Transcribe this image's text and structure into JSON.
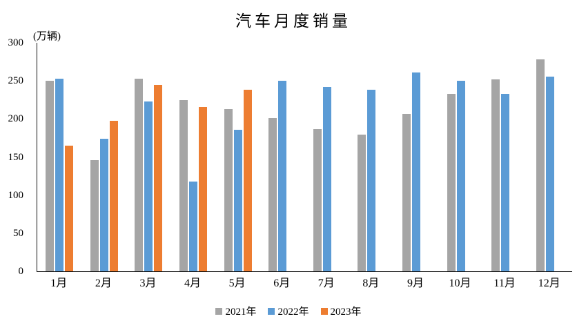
{
  "chart_data": {
    "type": "bar",
    "title": "汽车月度销量",
    "y_unit_label": "(万辆)",
    "categories": [
      "1月",
      "2月",
      "3月",
      "4月",
      "5月",
      "6月",
      "7月",
      "8月",
      "9月",
      "10月",
      "11月",
      "12月"
    ],
    "series": [
      {
        "name": "2021年",
        "color": "#A5A5A5",
        "values": [
          250.3,
          145.5,
          252.6,
          225.2,
          212.8,
          201.5,
          186.4,
          179.9,
          206.7,
          233.3,
          252.2,
          278.6
        ]
      },
      {
        "name": "2022年",
        "color": "#5B9BD5",
        "values": [
          253.1,
          173.7,
          223.4,
          118.1,
          186.2,
          250.2,
          242.0,
          238.3,
          261.0,
          250.5,
          232.8,
          255.9
        ]
      },
      {
        "name": "2023年",
        "color": "#ED7D31",
        "values": [
          164.9,
          197.6,
          245.1,
          215.9,
          238.2,
          null,
          null,
          null,
          null,
          null,
          null,
          null
        ]
      }
    ],
    "ylim": [
      0,
      300
    ],
    "yticks": [
      0,
      50,
      100,
      150,
      200,
      250,
      300
    ],
    "grid": false,
    "legend_position": "bottom",
    "axis_color": "#0d0d0d",
    "background_color": "#ffffff"
  }
}
